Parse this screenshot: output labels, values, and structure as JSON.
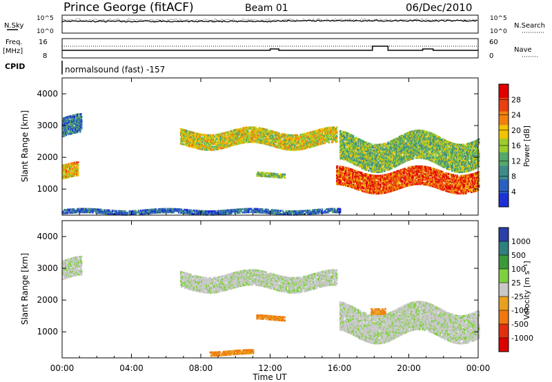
{
  "header": {
    "station": "Prince George (fitACF)",
    "beam": "Beam 01",
    "date": "06/Dec/2010"
  },
  "top_strip": {
    "left_label": "N.Sky",
    "left_ticks": [
      "10^5",
      "10^0"
    ],
    "right_label": "N.Search",
    "right_ticks": [
      "10^5",
      "10^0"
    ]
  },
  "freq_strip": {
    "left_label_1": "Freq.",
    "left_label_2": "[MHz]",
    "left_ticks": [
      "16",
      "8"
    ],
    "right_label": "Nave",
    "right_ticks": [
      "60",
      "0"
    ]
  },
  "cpid": {
    "label": "CPID",
    "program": "normalsound (fast) -157"
  },
  "power_panel": {
    "ylabel": "Slant Range [km]",
    "y_ticks": [
      "4000",
      "3000",
      "2000",
      "1000"
    ],
    "colorbar_label": "Power [dB]",
    "colorbar_ticks": [
      "28",
      "24",
      "20",
      "16",
      "12",
      "8",
      "4"
    ]
  },
  "velocity_panel": {
    "ylabel": "Slant Range [km]",
    "y_ticks": [
      "4000",
      "3000",
      "2000",
      "1000"
    ],
    "colorbar_label": "Velocity [m s⁻¹]",
    "colorbar_ticks": [
      "1000",
      "500",
      "100",
      "25",
      "-25",
      "-100",
      "-500",
      "-1000"
    ]
  },
  "x_axis": {
    "label": "Time UT",
    "ticks": [
      "00:00",
      "04:00",
      "08:00",
      "12:00",
      "16:00",
      "20:00",
      "00:00"
    ]
  },
  "colors": {
    "power_scale": [
      "#1e2fd6",
      "#2a5fbf",
      "#3f8a8a",
      "#55a86a",
      "#9ccc2c",
      "#f2c300",
      "#f08010",
      "#e84010",
      "#e00000"
    ],
    "velocity_scale": [
      "#2a3fa8",
      "#2f7f7f",
      "#3a9a3a",
      "#7fd03f",
      "#c8c8c8",
      "#e8a020",
      "#f07810",
      "#e03010",
      "#dd0000"
    ]
  },
  "chart_data": [
    {
      "type": "heatmap",
      "title": "Power [dB]",
      "xlabel": "Time UT",
      "ylabel": "Slant Range [km]",
      "xlim": [
        0,
        24
      ],
      "ylim": [
        180,
        4500
      ],
      "zlim": [
        0,
        32
      ],
      "legend": "colorbar-right",
      "echo_regions": [
        {
          "t_start": 0.0,
          "t_end": 1.1,
          "range_center_km": 2950,
          "range_width_km": 600,
          "value": 8
        },
        {
          "t_start": 0.0,
          "t_end": 0.9,
          "range_center_km": 1550,
          "range_width_km": 450,
          "value": 20
        },
        {
          "t_start": 6.8,
          "t_end": 15.8,
          "range_center_km": 2600,
          "range_width_km": 500,
          "value": 18
        },
        {
          "t_start": 11.2,
          "t_end": 12.8,
          "range_center_km": 1450,
          "range_width_km": 150,
          "value": 14
        },
        {
          "t_start": 15.8,
          "t_end": 24.0,
          "range_center_km": 1300,
          "range_width_km": 600,
          "value": 26
        },
        {
          "t_start": 16.0,
          "t_end": 24.0,
          "range_center_km": 2200,
          "range_width_km": 900,
          "value": 14
        },
        {
          "t_start": 0.0,
          "t_end": 16.0,
          "range_center_km": 300,
          "range_width_km": 150,
          "value": 6
        }
      ]
    },
    {
      "type": "heatmap",
      "title": "Velocity [m s⁻¹]",
      "xlabel": "Time UT",
      "ylabel": "Slant Range [km]",
      "xlim": [
        0,
        24
      ],
      "ylim": [
        180,
        4500
      ],
      "zlim": [
        -1000,
        1000
      ],
      "legend": "colorbar-right",
      "echo_regions": [
        {
          "t_start": 0.0,
          "t_end": 1.1,
          "range_center_km": 2950,
          "range_width_km": 600,
          "value": 0
        },
        {
          "t_start": 6.8,
          "t_end": 15.8,
          "range_center_km": 2600,
          "range_width_km": 500,
          "value": 0
        },
        {
          "t_start": 11.2,
          "t_end": 12.8,
          "range_center_km": 1450,
          "range_width_km": 150,
          "value": -100
        },
        {
          "t_start": 16.0,
          "t_end": 24.0,
          "range_center_km": 1300,
          "range_width_km": 900,
          "value": 0
        },
        {
          "t_start": 17.8,
          "t_end": 18.6,
          "range_center_km": 1700,
          "range_width_km": 200,
          "value": -100
        },
        {
          "t_start": 8.5,
          "t_end": 11.0,
          "range_center_km": 350,
          "range_width_km": 150,
          "value": -100
        }
      ]
    }
  ]
}
